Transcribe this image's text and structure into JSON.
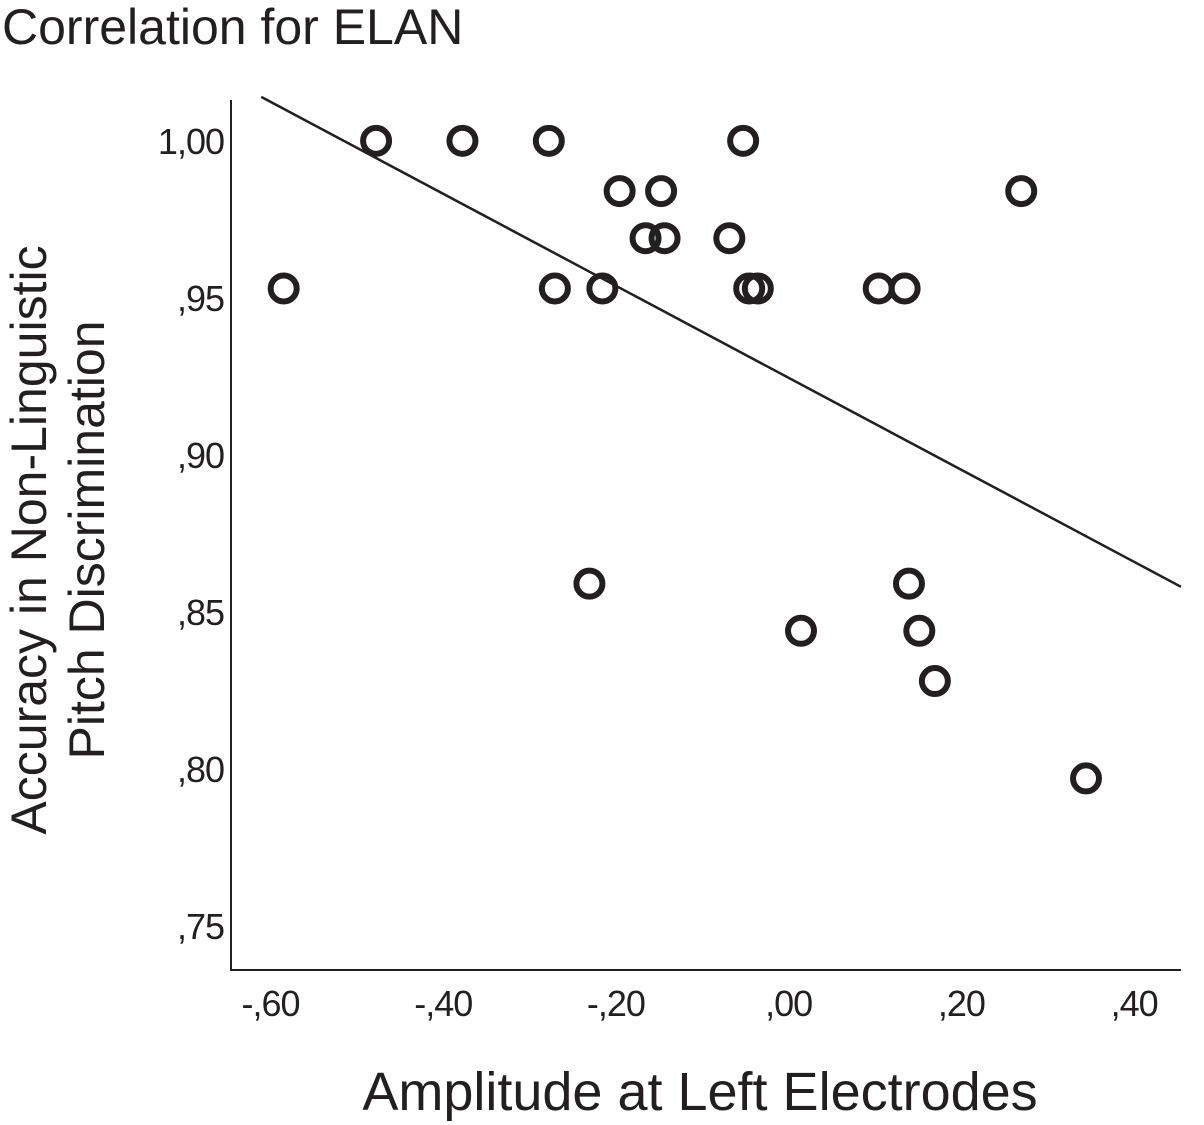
{
  "chart_data": {
    "type": "scatter",
    "title": "Correlation for ELAN",
    "xlabel": "Amplitude at Left Electrodes",
    "ylabel_lines": [
      "Accuracy in Non-Linguistic",
      "Pitch Discrimination"
    ],
    "xlim": [
      -0.655,
      0.445
    ],
    "ylim": [
      0.736,
      1.013
    ],
    "x_ticks": [
      {
        "value": -0.6,
        "label": "-,60"
      },
      {
        "value": -0.4,
        "label": "-,40"
      },
      {
        "value": -0.2,
        "label": "-,20"
      },
      {
        "value": 0.0,
        "label": ",00"
      },
      {
        "value": 0.2,
        "label": ",20"
      },
      {
        "value": 0.4,
        "label": ",40"
      }
    ],
    "y_ticks": [
      {
        "value": 1.0,
        "label": "1,00"
      },
      {
        "value": 0.95,
        "label": ",95"
      },
      {
        "value": 0.9,
        "label": ",90"
      },
      {
        "value": 0.85,
        "label": ",85"
      },
      {
        "value": 0.8,
        "label": ",80"
      },
      {
        "value": 0.75,
        "label": ",75"
      }
    ],
    "grid": false,
    "legend": "none",
    "points": [
      {
        "x": -0.594,
        "y": 0.953
      },
      {
        "x": -0.487,
        "y": 1.0
      },
      {
        "x": -0.387,
        "y": 1.0
      },
      {
        "x": -0.287,
        "y": 1.0
      },
      {
        "x": -0.28,
        "y": 0.953
      },
      {
        "x": -0.24,
        "y": 0.859
      },
      {
        "x": -0.225,
        "y": 0.953
      },
      {
        "x": -0.205,
        "y": 0.984
      },
      {
        "x": -0.175,
        "y": 0.969
      },
      {
        "x": -0.157,
        "y": 0.984
      },
      {
        "x": -0.153,
        "y": 0.969
      },
      {
        "x": -0.078,
        "y": 0.969
      },
      {
        "x": -0.062,
        "y": 1.0
      },
      {
        "x": -0.055,
        "y": 0.953
      },
      {
        "x": -0.045,
        "y": 0.953
      },
      {
        "x": 0.005,
        "y": 0.844
      },
      {
        "x": 0.095,
        "y": 0.953
      },
      {
        "x": 0.125,
        "y": 0.953
      },
      {
        "x": 0.13,
        "y": 0.859
      },
      {
        "x": 0.142,
        "y": 0.844
      },
      {
        "x": 0.16,
        "y": 0.828
      },
      {
        "x": 0.26,
        "y": 0.984
      },
      {
        "x": 0.335,
        "y": 0.797
      }
    ],
    "fit_line": {
      "x1": -0.62,
      "y1": 1.014,
      "x2": 0.445,
      "y2": 0.858
    }
  },
  "colors": {
    "ink": "#231f20",
    "background": "#ffffff"
  }
}
